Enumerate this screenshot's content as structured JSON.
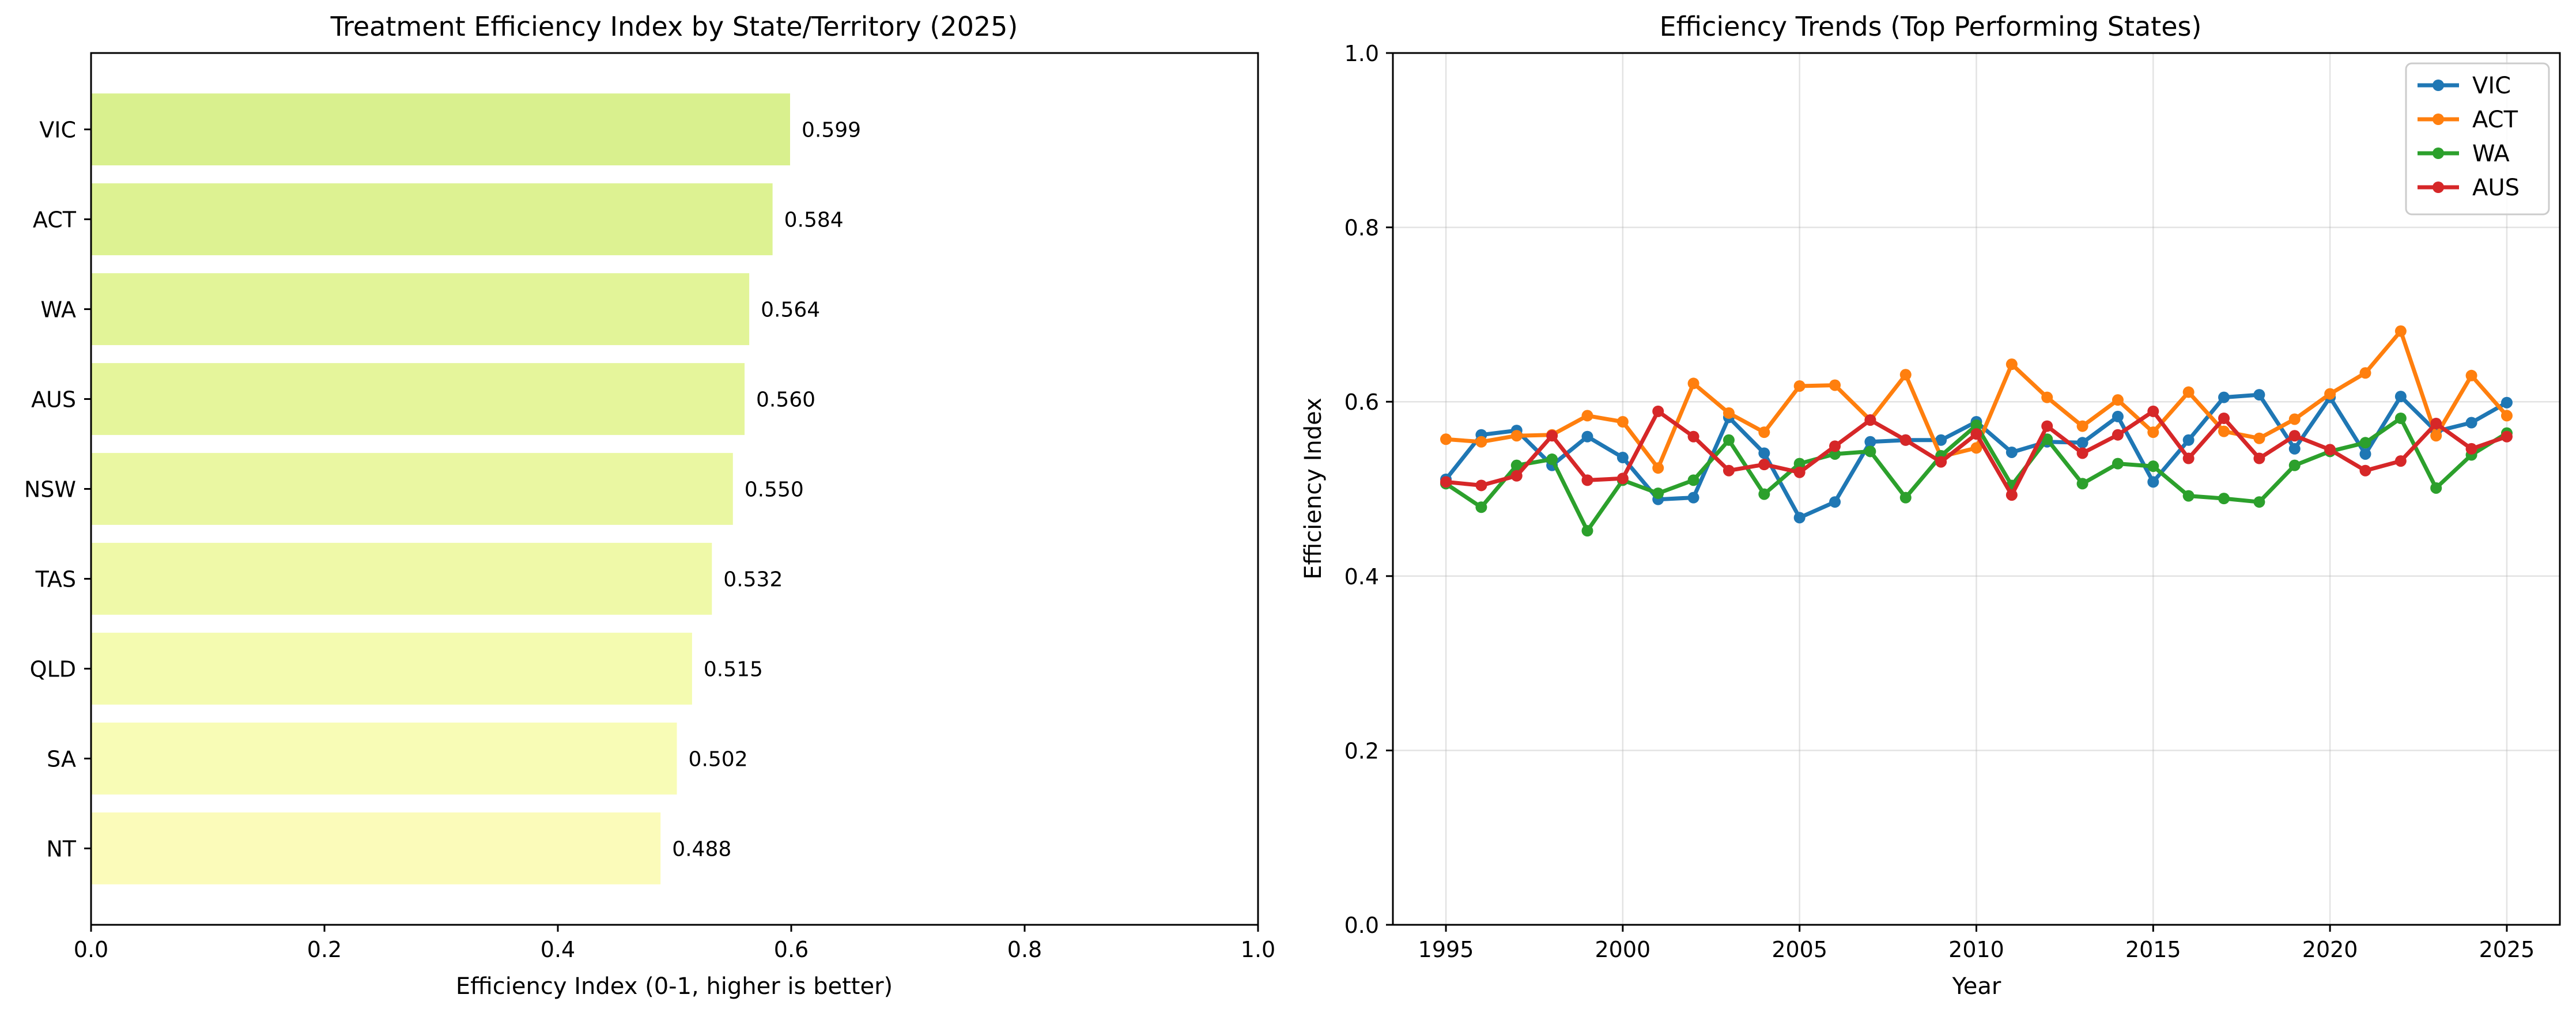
{
  "chart_data": [
    {
      "type": "bar",
      "orientation": "horizontal",
      "title": "Treatment Efficiency Index by State/Territory (2025)",
      "xlabel": "Efficiency Index (0-1, higher is better)",
      "ylabel": "",
      "xlim": [
        0,
        1.0
      ],
      "xticks": [
        "0.0",
        "0.2",
        "0.4",
        "0.6",
        "0.8",
        "1.0"
      ],
      "grid": false,
      "categories": [
        "VIC",
        "ACT",
        "WA",
        "AUS",
        "NSW",
        "TAS",
        "QLD",
        "SA",
        "NT"
      ],
      "values": [
        0.599,
        0.584,
        0.564,
        0.56,
        0.55,
        0.532,
        0.515,
        0.502,
        0.488
      ],
      "value_labels": [
        "0.599",
        "0.584",
        "0.564",
        "0.560",
        "0.550",
        "0.532",
        "0.515",
        "0.502",
        "0.488"
      ],
      "colors": [
        "#d9f08e",
        "#ddf292",
        "#e2f498",
        "#e5f59b",
        "#eaf7a2",
        "#eff9a8",
        "#f4fbb0",
        "#f8fcb6",
        "#fbfbba"
      ]
    },
    {
      "type": "line",
      "title": "Efficiency Trends (Top Performing States)",
      "xlabel": "Year",
      "ylabel": "Efficiency Index",
      "xlim": [
        1993.5,
        2026.5
      ],
      "ylim": [
        0,
        1.0
      ],
      "xticks": [
        "1995",
        "2000",
        "2005",
        "2010",
        "2015",
        "2020",
        "2025"
      ],
      "yticks": [
        "0.0",
        "0.2",
        "0.4",
        "0.6",
        "0.8",
        "1.0"
      ],
      "grid": true,
      "legend_position": "top-right",
      "x": [
        1995,
        1996,
        1997,
        1998,
        1999,
        2000,
        2001,
        2002,
        2003,
        2004,
        2005,
        2006,
        2007,
        2008,
        2009,
        2010,
        2011,
        2012,
        2013,
        2014,
        2015,
        2016,
        2017,
        2018,
        2019,
        2020,
        2021,
        2022,
        2023,
        2024,
        2025
      ],
      "series": [
        {
          "name": "VIC",
          "color": "#1f77b4",
          "values": [
            0.511,
            0.562,
            0.567,
            0.527,
            0.56,
            0.536,
            0.488,
            0.49,
            0.582,
            0.541,
            0.467,
            0.485,
            0.554,
            0.556,
            0.556,
            0.577,
            0.542,
            0.554,
            0.553,
            0.583,
            0.508,
            0.556,
            0.605,
            0.608,
            0.546,
            0.605,
            0.54,
            0.606,
            0.566,
            0.576,
            0.599
          ]
        },
        {
          "name": "ACT",
          "color": "#ff7f0e",
          "values": [
            0.557,
            0.554,
            0.561,
            0.562,
            0.584,
            0.577,
            0.524,
            0.621,
            0.587,
            0.565,
            0.618,
            0.619,
            0.579,
            0.631,
            0.537,
            0.547,
            0.643,
            0.605,
            0.572,
            0.602,
            0.565,
            0.611,
            0.566,
            0.558,
            0.58,
            0.609,
            0.633,
            0.681,
            0.561,
            0.63,
            0.584
          ]
        },
        {
          "name": "WA",
          "color": "#2ca02c",
          "values": [
            0.506,
            0.479,
            0.527,
            0.534,
            0.452,
            0.51,
            0.495,
            0.51,
            0.556,
            0.494,
            0.529,
            0.54,
            0.543,
            0.49,
            0.538,
            0.573,
            0.504,
            0.557,
            0.506,
            0.529,
            0.526,
            0.492,
            0.489,
            0.485,
            0.527,
            0.543,
            0.553,
            0.581,
            0.501,
            0.539,
            0.564
          ]
        },
        {
          "name": "AUS",
          "color": "#d62728",
          "values": [
            0.508,
            0.504,
            0.515,
            0.561,
            0.51,
            0.512,
            0.589,
            0.56,
            0.521,
            0.528,
            0.519,
            0.549,
            0.579,
            0.556,
            0.531,
            0.563,
            0.493,
            0.572,
            0.541,
            0.562,
            0.589,
            0.535,
            0.581,
            0.535,
            0.561,
            0.545,
            0.521,
            0.532,
            0.575,
            0.546,
            0.56
          ]
        }
      ]
    }
  ]
}
